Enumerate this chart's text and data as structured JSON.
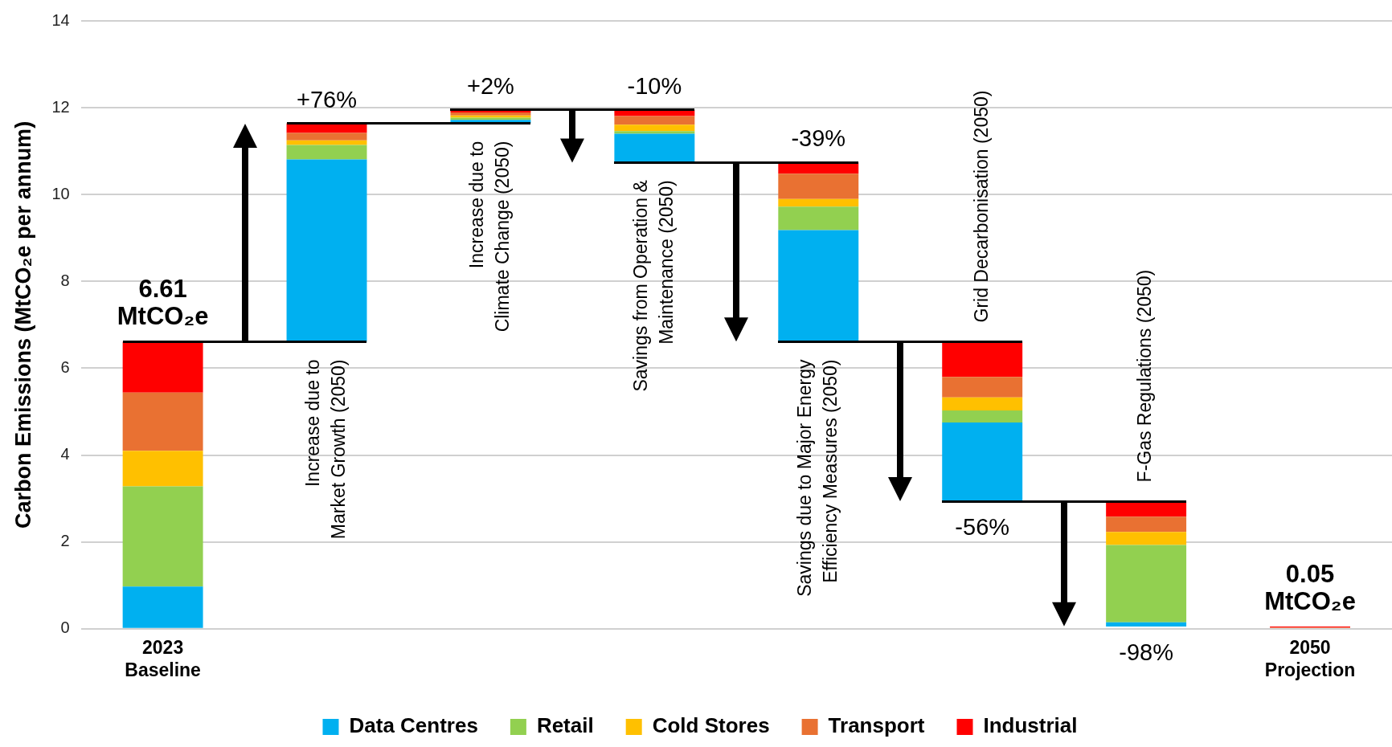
{
  "chart_data": {
    "type": "bar",
    "ylabel": "Carbon Emissions (MtCO₂e per annum)",
    "categories": [
      "2023\nBaseline",
      "Increase due to\nMarket Growth (2050)",
      "Increase due to\nClimate Change (2050)",
      "Savings from Operation &\nMaintenance (2050)",
      "Savings due to Major Energy\nEfficiency Measures (2050)",
      "Grid Decarbonisation (2050)",
      "F-Gas Regulations (2050)",
      "2050\nProjection"
    ],
    "series": [
      {
        "name": "Data Centres",
        "color": "#00b0f0",
        "values": [
          0.97,
          4.2,
          0.08,
          0.66,
          2.57,
          1.82,
          0.1,
          null
        ],
        "base": [
          0,
          6.61,
          11.64,
          10.74,
          6.61,
          2.93,
          0.05,
          null
        ]
      },
      {
        "name": "Retail",
        "color": "#92d050",
        "values": [
          2.31,
          0.33,
          0.05,
          0.06,
          0.54,
          0.28,
          1.78,
          null
        ],
        "base": [
          0.97,
          10.81,
          11.72,
          11.4,
          9.18,
          4.75,
          0.15,
          null
        ]
      },
      {
        "name": "Cold Stores",
        "color": "#ffc000",
        "values": [
          0.82,
          0.11,
          0.05,
          0.15,
          0.18,
          0.3,
          0.3,
          null
        ],
        "base": [
          3.28,
          11.14,
          11.77,
          11.46,
          9.72,
          5.03,
          1.93,
          null
        ]
      },
      {
        "name": "Transport",
        "color": "#e97132",
        "values": [
          1.34,
          0.17,
          0.07,
          0.2,
          0.58,
          0.47,
          0.35,
          0.03
        ],
        "base": [
          4.1,
          11.25,
          11.82,
          11.61,
          9.9,
          5.33,
          2.23,
          0
        ]
      },
      {
        "name": "Industrial",
        "color": "#ff0000",
        "values": [
          1.17,
          0.22,
          0.06,
          0.14,
          0.26,
          0.81,
          0.35,
          0.02
        ],
        "base": [
          5.44,
          11.42,
          11.89,
          11.81,
          10.48,
          5.8,
          2.58,
          0.03
        ]
      }
    ],
    "totals": [
      "6.61\nMtCO₂e",
      null,
      null,
      null,
      null,
      null,
      null,
      "0.05\nMtCO₂e"
    ],
    "annotations": [
      {
        "text": "+76%",
        "x": "Increase due to\nMarket Growth (2050)",
        "y": 11.64
      },
      {
        "text": "+2%",
        "x": "Increase due to\nClimate Change (2050)",
        "y": 11.95
      },
      {
        "text": "-10%",
        "x": "Savings from Operation &\nMaintenance (2050)",
        "y": 11.95
      },
      {
        "text": "-39%",
        "x": "Savings due to Major Energy\nEfficiency Measures (2050)",
        "y": 10.74
      },
      {
        "text": "-56%",
        "x": "Grid Decarbonisation (2050)",
        "y": 2.93
      },
      {
        "text": "-98%",
        "x": "F-Gas Regulations (2050)",
        "y": 0.05
      }
    ],
    "ylim": [
      0,
      14
    ],
    "yticks": [
      0,
      2,
      4,
      6,
      8,
      10,
      12,
      14
    ],
    "grid": "y",
    "legend": "bottom"
  }
}
